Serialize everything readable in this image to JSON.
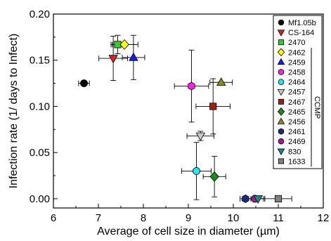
{
  "chart_data": {
    "type": "scatter",
    "xlabel": "Average of cell size in diameter (µm)",
    "ylabel": "Infection rate (1/ days to Infect)",
    "xlim": [
      6,
      12
    ],
    "ylim": [
      -0.01,
      0.2
    ],
    "xticks": [
      "6",
      "7",
      "8",
      "9",
      "10",
      "11",
      "12"
    ],
    "yticks": [
      "0.00",
      "0.05",
      "0.10",
      "0.15",
      "0.20"
    ],
    "grid": false,
    "legend_position": "top-right",
    "legend_group_label": "CCMP",
    "series": [
      {
        "name": "Mf1.05b",
        "marker": "circle",
        "color": "#000000",
        "x": 6.68,
        "y": 0.125,
        "xerr": 0.12,
        "yerr": 0.0
      },
      {
        "name": "CS-164",
        "marker": "triangle-down",
        "color": "#e02020",
        "x": 7.33,
        "y": 0.152,
        "xerr": 0.32,
        "yerr": 0.024
      },
      {
        "name": "2470",
        "marker": "square",
        "color": "#33cc33",
        "x": 7.43,
        "y": 0.167,
        "xerr": 0.12,
        "yerr": 0.01
      },
      {
        "name": "2462",
        "marker": "diamond",
        "color": "#ffff00",
        "x": 7.58,
        "y": 0.167,
        "xerr": 0.3,
        "yerr": 0.0
      },
      {
        "name": "2459",
        "marker": "triangle-up",
        "color": "#1a1aff",
        "x": 7.78,
        "y": 0.153,
        "xerr": 0.25,
        "yerr": 0.024
      },
      {
        "name": "2458",
        "marker": "hexagon",
        "color": "#ff22dd",
        "x": 9.07,
        "y": 0.122,
        "xerr": 0.38,
        "yerr": 0.039
      },
      {
        "name": "2464",
        "marker": "circle",
        "color": "#22e5f0",
        "x": 9.18,
        "y": 0.03,
        "xerr": 0.33,
        "yerr": 0.031
      },
      {
        "name": "2457",
        "marker": "triangle-down",
        "color": "#c8c8c8",
        "x": 9.27,
        "y": 0.068,
        "xerr": 0.3,
        "yerr": 0.005
      },
      {
        "name": "2467",
        "marker": "square",
        "color": "#aa1a1a",
        "x": 9.55,
        "y": 0.1,
        "xerr": 0.38,
        "yerr": 0.03
      },
      {
        "name": "2465",
        "marker": "diamond",
        "color": "#1a8a1a",
        "x": 9.58,
        "y": 0.024,
        "xerr": 0.25,
        "yerr": 0.022
      },
      {
        "name": "2456",
        "marker": "triangle-up",
        "color": "#8a8a20",
        "x": 9.73,
        "y": 0.126,
        "xerr": 0.25,
        "yerr": 0.0
      },
      {
        "name": "2461",
        "marker": "hexagon",
        "color": "#1a2a80",
        "x": 10.27,
        "y": 0.0,
        "xerr": 0.12,
        "yerr": 0.0
      },
      {
        "name": "2469",
        "marker": "circle",
        "color": "#a01a90",
        "x": 10.48,
        "y": 0.0,
        "xerr": 0.22,
        "yerr": 0.0
      },
      {
        "name": "830",
        "marker": "triangle-down",
        "color": "#1a8a8a",
        "x": 10.55,
        "y": 0.0,
        "xerr": 0.12,
        "yerr": 0.0
      },
      {
        "name": "1633",
        "marker": "square",
        "color": "#808080",
        "x": 11.0,
        "y": 0.0,
        "xerr": 0.3,
        "yerr": 0.0
      }
    ]
  }
}
